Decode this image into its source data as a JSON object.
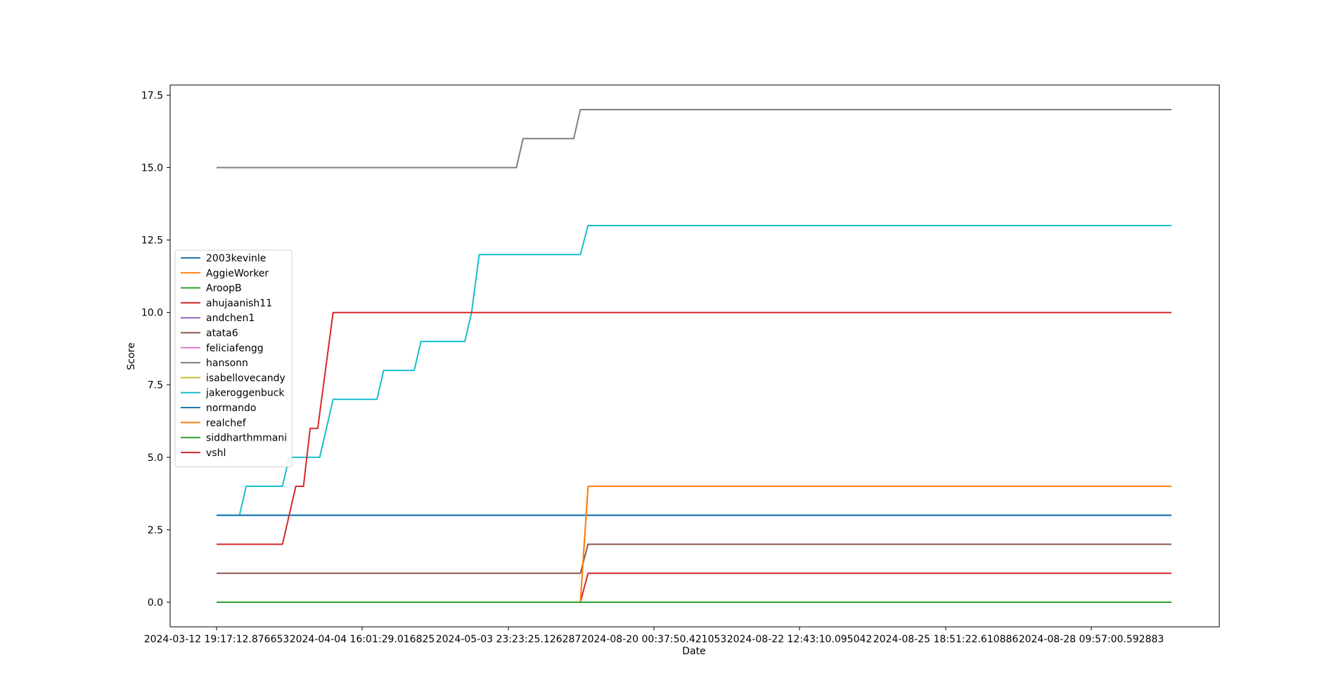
{
  "chart_data": {
    "type": "line",
    "xlabel": "Date",
    "ylabel": "Score",
    "ylim": [
      -0.85,
      17.85
    ],
    "yticks": [
      0.0,
      2.5,
      5.0,
      7.5,
      10.0,
      12.5,
      15.0,
      17.5
    ],
    "ytick_labels": [
      "0.0",
      "2.5",
      "5.0",
      "7.5",
      "10.0",
      "12.5",
      "15.0",
      "17.5"
    ],
    "x_ticks": [
      "2024-03-12 19:17:12.876653",
      "2024-04-04 16:01:29.016825",
      "2024-05-03 23:23:25.126287",
      "2024-08-20 00:37:50.421053",
      "2024-08-22 12:43:10.095042",
      "2024-08-25 18:51:22.610886",
      "2024-08-28 09:57:00.592883"
    ],
    "x_last": "2024-08-30",
    "grid": false,
    "legend_position": "center-left",
    "series": [
      {
        "name": "2003kevinle",
        "color": "#1f77b4",
        "points": [
          [
            0,
            3
          ],
          [
            100,
            3
          ]
        ]
      },
      {
        "name": "AggieWorker",
        "color": "#ff7f0e",
        "points": [
          [
            0,
            0
          ],
          [
            38.1,
            0
          ],
          [
            38.9,
            4
          ],
          [
            100,
            4
          ]
        ]
      },
      {
        "name": "AroopB",
        "color": "#2ca02c",
        "points": [
          [
            0,
            0
          ],
          [
            100,
            0
          ]
        ]
      },
      {
        "name": "ahujaanish11",
        "color": "#d62728",
        "points": [
          [
            0,
            0
          ],
          [
            38.1,
            0
          ],
          [
            38.9,
            1
          ],
          [
            100,
            1
          ]
        ]
      },
      {
        "name": "andchen1",
        "color": "#9467bd",
        "points": [
          [
            0,
            0
          ],
          [
            100,
            0
          ]
        ]
      },
      {
        "name": "atata6",
        "color": "#8c564b",
        "points": [
          [
            0,
            1
          ],
          [
            38.1,
            1
          ],
          [
            38.9,
            2
          ],
          [
            100,
            2
          ]
        ]
      },
      {
        "name": "feliciafengg",
        "color": "#e377c2",
        "points": [
          [
            0,
            0
          ],
          [
            100,
            0
          ]
        ]
      },
      {
        "name": "hansonn",
        "color": "#7f7f7f",
        "points": [
          [
            0,
            15
          ],
          [
            31.4,
            15
          ],
          [
            32.1,
            16
          ],
          [
            37.4,
            16
          ],
          [
            38.1,
            17
          ],
          [
            100,
            17
          ]
        ]
      },
      {
        "name": "isabellovecandy",
        "color": "#bcbd22",
        "points": [
          [
            0,
            0
          ],
          [
            100,
            0
          ]
        ]
      },
      {
        "name": "jakeroggenbuck",
        "color": "#17becf",
        "points": [
          [
            0,
            3
          ],
          [
            2.4,
            3
          ],
          [
            3.1,
            4
          ],
          [
            6.9,
            4
          ],
          [
            7.6,
            5
          ],
          [
            10.8,
            5
          ],
          [
            12.2,
            7
          ],
          [
            16.8,
            7
          ],
          [
            17.5,
            8
          ],
          [
            20.7,
            8
          ],
          [
            21.4,
            9
          ],
          [
            26.0,
            9
          ],
          [
            26.7,
            10
          ],
          [
            27.5,
            12
          ],
          [
            38.1,
            12
          ],
          [
            38.9,
            13
          ],
          [
            100,
            13
          ]
        ]
      },
      {
        "name": "normando",
        "color": "#1f77b4",
        "points": [
          [
            0,
            3
          ],
          [
            100,
            3
          ]
        ]
      },
      {
        "name": "realchef",
        "color": "#ff7f0e",
        "points": [
          [
            0,
            0
          ],
          [
            38.1,
            0
          ],
          [
            38.9,
            4
          ],
          [
            100,
            4
          ]
        ]
      },
      {
        "name": "siddharthmmani",
        "color": "#2ca02c",
        "points": [
          [
            0,
            0
          ],
          [
            100,
            0
          ]
        ]
      },
      {
        "name": "vshl",
        "color": "#d62728",
        "points": [
          [
            0,
            2
          ],
          [
            6.9,
            2
          ],
          [
            8.3,
            4
          ],
          [
            9.1,
            4
          ],
          [
            9.8,
            6
          ],
          [
            10.6,
            6
          ],
          [
            12.2,
            10
          ],
          [
            100,
            10
          ]
        ]
      }
    ]
  }
}
